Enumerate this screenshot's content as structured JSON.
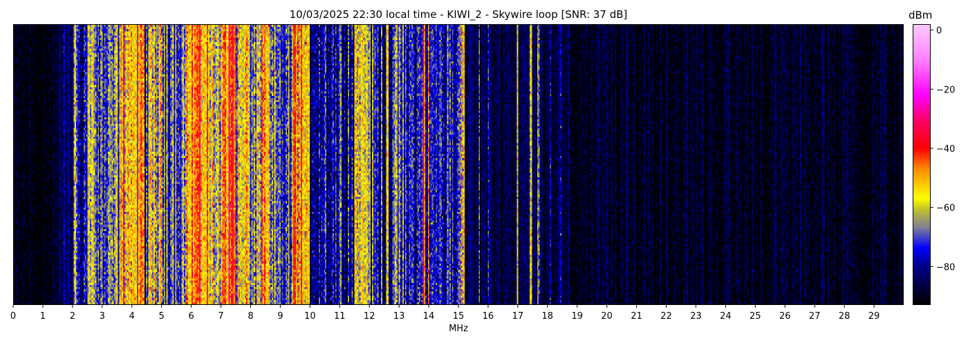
{
  "chart_data": {
    "type": "heatmap",
    "title": "10/03/2025 22:30 local time - KIWI_2 - Skywire loop [SNR: 37 dB]",
    "xlabel": "MHz",
    "xlim": [
      0,
      30
    ],
    "xticks": [
      0,
      1,
      2,
      3,
      4,
      5,
      6,
      7,
      8,
      9,
      10,
      11,
      12,
      13,
      14,
      15,
      16,
      17,
      18,
      19,
      20,
      21,
      22,
      23,
      24,
      25,
      26,
      27,
      28,
      29
    ],
    "colorbar": {
      "label": "dBm",
      "clim": [
        -93,
        2
      ],
      "ticks": [
        0,
        -20,
        -40,
        -60,
        -80
      ],
      "colormap": [
        [
          -93,
          "#000000"
        ],
        [
          -80,
          "#00008c"
        ],
        [
          -74,
          "#0000ff"
        ],
        [
          -67,
          "#7f7f9a"
        ],
        [
          -61,
          "#bfbf30"
        ],
        [
          -57,
          "#ffff00"
        ],
        [
          -47,
          "#ff8c00"
        ],
        [
          -40,
          "#ff0000"
        ],
        [
          -30,
          "#ff0070"
        ],
        [
          -22,
          "#ff00ff"
        ],
        [
          -10,
          "#ff80ff"
        ],
        [
          2,
          "#ffc8ff"
        ]
      ]
    },
    "band_levels_dbm": [
      [
        0,
        1.5,
        -92
      ],
      [
        1.5,
        2.0,
        -84
      ],
      [
        2.0,
        2.1,
        -55
      ],
      [
        2.1,
        2.5,
        -76
      ],
      [
        2.5,
        2.8,
        -60
      ],
      [
        2.8,
        3.4,
        -72
      ],
      [
        3.4,
        3.6,
        -65
      ],
      [
        3.6,
        4.4,
        -52
      ],
      [
        4.4,
        4.6,
        -70
      ],
      [
        4.6,
        5.0,
        -62
      ],
      [
        5.0,
        5.8,
        -65
      ],
      [
        5.8,
        6.0,
        -55
      ],
      [
        6.0,
        6.6,
        -48
      ],
      [
        6.6,
        7.0,
        -62
      ],
      [
        7.0,
        7.5,
        -43
      ],
      [
        7.5,
        8.0,
        -60
      ],
      [
        8.0,
        8.2,
        -66
      ],
      [
        8.2,
        8.6,
        -58
      ],
      [
        8.6,
        9.4,
        -72
      ],
      [
        9.4,
        9.8,
        -50
      ],
      [
        9.8,
        10.0,
        -66
      ],
      [
        10.0,
        11.5,
        -76
      ],
      [
        11.5,
        12.0,
        -57
      ],
      [
        12.0,
        13.8,
        -76
      ],
      [
        13.8,
        13.9,
        -38
      ],
      [
        13.9,
        15.0,
        -76
      ],
      [
        15.0,
        15.2,
        -56
      ],
      [
        15.2,
        18.5,
        -86
      ],
      [
        18.5,
        30,
        -90
      ]
    ],
    "carrier_lines": [
      [
        12.6,
        -55
      ],
      [
        13.0,
        -55
      ],
      [
        14.0,
        -58
      ],
      [
        15.7,
        -78
      ],
      [
        16.0,
        -78
      ],
      [
        17.0,
        -60
      ],
      [
        17.45,
        -60
      ],
      [
        17.7,
        -58
      ],
      [
        18.1,
        -74
      ],
      [
        18.45,
        -70
      ],
      [
        21.4,
        -82
      ],
      [
        22.0,
        -82
      ],
      [
        27.3,
        -86
      ]
    ]
  }
}
